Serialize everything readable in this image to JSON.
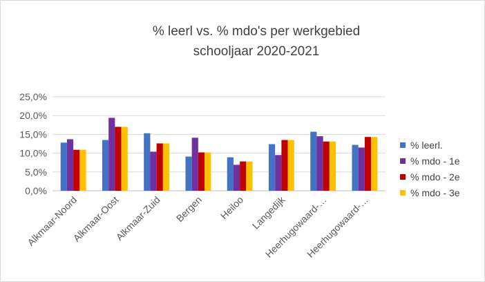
{
  "chart_data": {
    "type": "bar",
    "title": "% leerl vs. % mdo's per werkgebied",
    "subtitle": "schooljaar 2020-2021",
    "xlabel": "",
    "ylabel": "",
    "ylim": [
      0,
      25
    ],
    "yticks": [
      "0,0%",
      "5,0%",
      "10,0%",
      "15,0%",
      "20,0%",
      "25,0%"
    ],
    "grid": true,
    "legend_position": "right",
    "categories": [
      "Alkmaar-Noord",
      "Alkmaar-Oost",
      "Alkmaar-Zuid",
      "Bergen",
      "Heiloo",
      "Langedijk",
      "Heerhugowaard-…",
      "Heerhugowaard-…"
    ],
    "series": [
      {
        "name": "% leerl.",
        "color": "#4472c4",
        "values": [
          12.8,
          13.5,
          15.3,
          9.1,
          8.9,
          12.4,
          15.7,
          12.2
        ]
      },
      {
        "name": "% mdo - 1e",
        "color": "#7030a0",
        "values": [
          13.7,
          19.4,
          10.4,
          14.1,
          6.9,
          9.5,
          14.5,
          11.5
        ]
      },
      {
        "name": "% mdo - 2e",
        "color": "#c00000",
        "values": [
          10.9,
          17.0,
          12.6,
          10.2,
          7.8,
          13.5,
          13.1,
          14.3
        ]
      },
      {
        "name": "% mdo - 3e",
        "color": "#ffc000",
        "values": [
          10.9,
          17.0,
          12.6,
          10.2,
          7.8,
          13.5,
          13.1,
          14.3
        ]
      }
    ]
  }
}
